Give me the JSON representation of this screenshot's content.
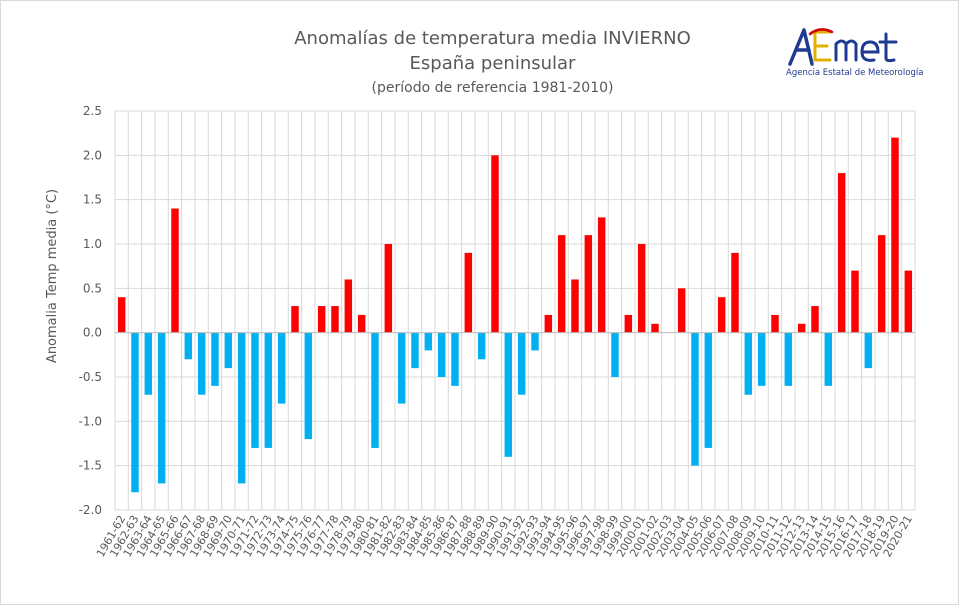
{
  "title_line1": "Anomalías de temperatura media INVIERNO",
  "title_line2": "España peninsular",
  "title_line3": "(período de referencia 1981-2010)",
  "logo": {
    "mark": "AEmet",
    "subtitle": "Agencia Estatal de Meteorología"
  },
  "colors": {
    "positive": "#ff0000",
    "negative": "#00b0f0",
    "grid": "#d9d9d9",
    "text": "#595959"
  },
  "chart_data": {
    "type": "bar",
    "ylabel": "Anomalia Temp media (°C)",
    "xlabel": "",
    "ylim": [
      -2.0,
      2.5
    ],
    "yticks": [
      "-2.0",
      "-1.5",
      "-1.0",
      "-0.5",
      "0.0",
      "0.5",
      "1.0",
      "1.5",
      "2.0",
      "2.5"
    ],
    "grid": true,
    "categories": [
      "1961-62",
      "1962-63",
      "1963-64",
      "1964-65",
      "1965-66",
      "1966-67",
      "1967-68",
      "1968-69",
      "1969-70",
      "1970-71",
      "1971-72",
      "1972-73",
      "1973-74",
      "1974-75",
      "1975-76",
      "1976-77",
      "1977-78",
      "1978-79",
      "1979-80",
      "1980-81",
      "1981-82",
      "1982-83",
      "1983-84",
      "1984-85",
      "1985-86",
      "1986-87",
      "1987-88",
      "1988-89",
      "1989-90",
      "1990-91",
      "1991-92",
      "1992-93",
      "1993-94",
      "1994-95",
      "1995-96",
      "1996-97",
      "1997-98",
      "1998-99",
      "1999-00",
      "2000-01",
      "2001-02",
      "2002-03",
      "2003-04",
      "2004-05",
      "2005-06",
      "2006-07",
      "2007-08",
      "2008-09",
      "2009-10",
      "2010-11",
      "2011-12",
      "2012-13",
      "2013-14",
      "2014-15",
      "2015-16",
      "2016-17",
      "2017-18",
      "2018-19",
      "2019-20",
      "2020-21"
    ],
    "values": [
      0.4,
      -1.8,
      -0.7,
      -1.7,
      1.4,
      -0.3,
      -0.7,
      -0.6,
      -0.4,
      -1.7,
      -1.3,
      -1.3,
      -0.8,
      0.3,
      -1.2,
      0.3,
      0.3,
      0.6,
      0.2,
      -1.3,
      1.0,
      -0.8,
      -0.4,
      -0.2,
      -0.5,
      -0.6,
      0.9,
      -0.3,
      2.0,
      -1.4,
      -0.7,
      -0.2,
      0.2,
      1.1,
      0.6,
      1.1,
      1.3,
      -0.5,
      0.2,
      1.0,
      0.1,
      0.0,
      0.5,
      -1.5,
      -1.3,
      0.4,
      0.9,
      -0.7,
      -0.6,
      0.2,
      -0.6,
      0.1,
      0.3,
      -0.6,
      1.8,
      0.7,
      -0.4,
      1.1,
      2.2,
      0.7
    ]
  }
}
